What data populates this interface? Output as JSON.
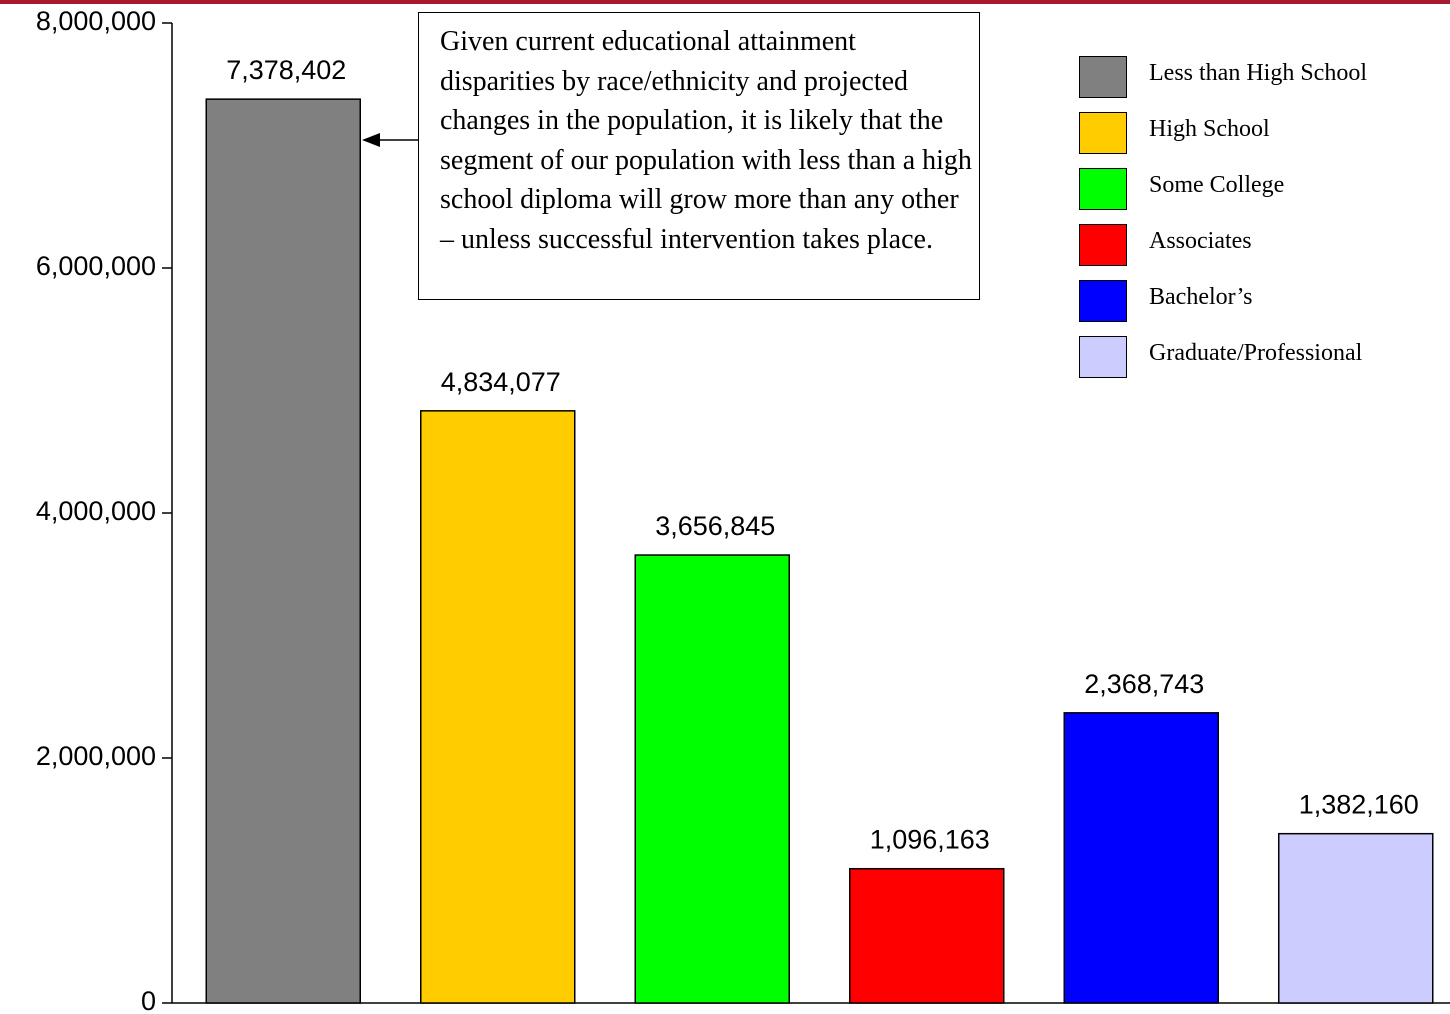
{
  "chart_data": {
    "type": "bar",
    "categories": [
      "Less than High School",
      "High School",
      "Some College",
      "Associates",
      "Bachelor’s",
      "Graduate/Professional"
    ],
    "values": [
      7378402,
      4834077,
      3656845,
      1096163,
      2368743,
      1382160
    ],
    "value_labels": [
      "7,378,402",
      "4,834,077",
      "3,656,845",
      "1,096,163",
      "2,368,743",
      "1,382,160"
    ],
    "colors": [
      "#808080",
      "#ffcc00",
      "#00ff00",
      "#ff0000",
      "#0000ff",
      "#ccccff"
    ],
    "ylim": [
      0,
      8000000
    ],
    "yticks": [
      0,
      2000000,
      4000000,
      6000000,
      8000000
    ],
    "ytick_labels": [
      "0",
      "2,000,000",
      "4,000,000",
      "6,000,000",
      "8,000,000"
    ],
    "grid": false,
    "legend_position": "top-right",
    "annotation": "Given current educational attainment disparities by race/ethnicity and projected changes in the population, it is likely that the segment of our population with less than a high school diploma will grow more than any other – unless successful intervention takes place."
  },
  "header_color": "#a6192e"
}
